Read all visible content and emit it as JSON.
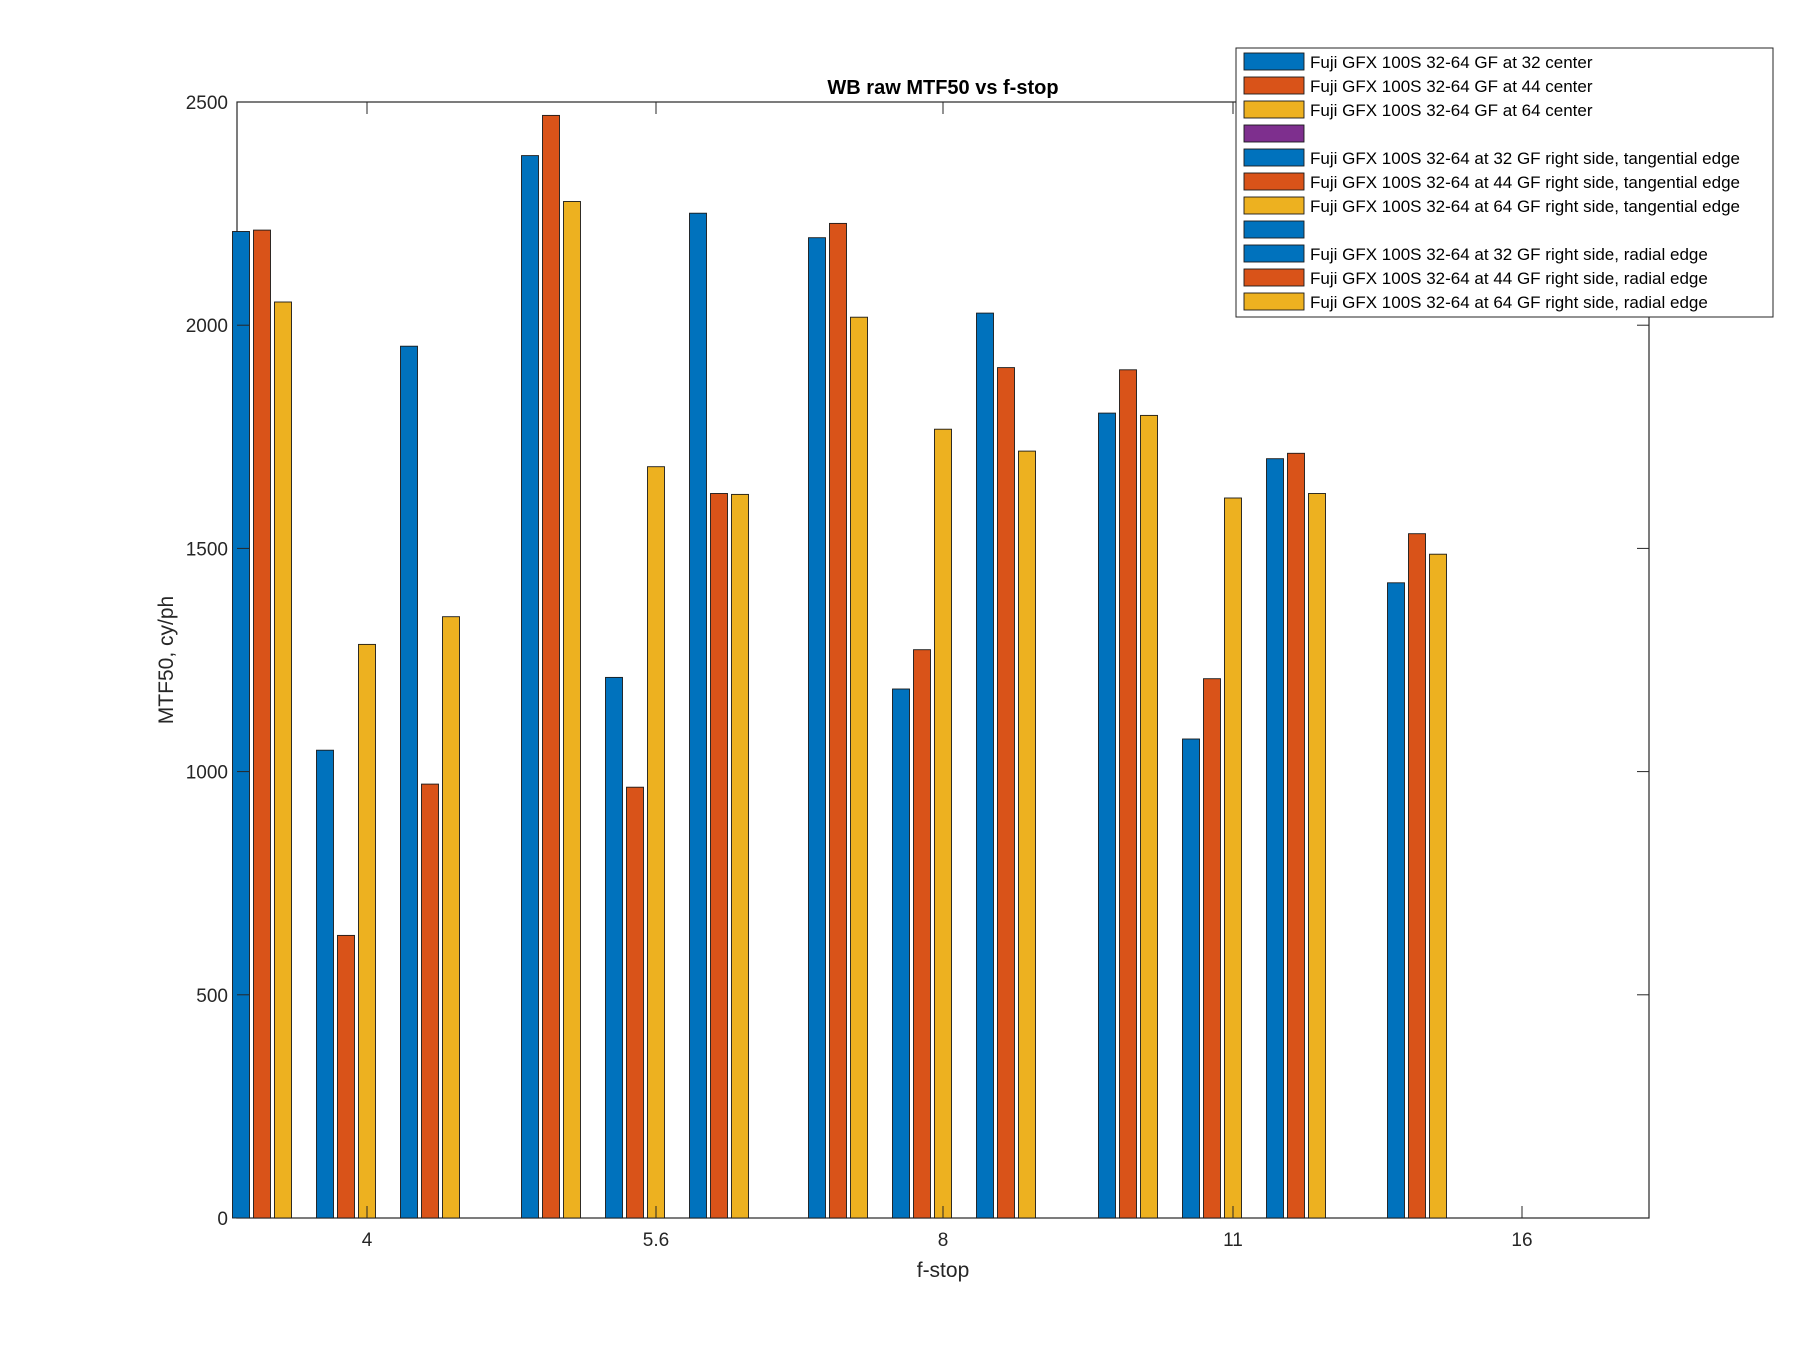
{
  "chart_data": {
    "type": "bar",
    "title": "WB raw MTF50 vs f-stop",
    "xlabel": "f-stop",
    "ylabel": "MTF50, cy/ph",
    "ylim": [
      0,
      2500
    ],
    "yticks": [
      0,
      500,
      1000,
      1500,
      2000,
      2500
    ],
    "xticks": [
      "4",
      "5.6",
      "8",
      "11",
      "16"
    ],
    "grid": false,
    "legend_position": "top-right",
    "groups_per_fstop": 3,
    "series_per_group": 3,
    "series": [
      {
        "name": "Fuji GFX 100S 32-64 GF at 32 center",
        "color": "#0072BD",
        "values": [
          2210,
          2380,
          2196,
          2027,
          1803,
          1701,
          1423
        ]
      },
      {
        "name": "Fuji GFX 100S 32-64 GF at 44 center",
        "color": "#D95319",
        "values": [
          2213,
          2470,
          2228,
          1905,
          1900,
          1713,
          1533
        ]
      },
      {
        "name": "Fuji GFX 100S 32-64 GF at 64 center",
        "color": "#EDB120",
        "values": [
          2052,
          2277,
          2018,
          1718,
          1798,
          1623,
          1487
        ]
      },
      {
        "name": "",
        "color": "#7E2F8E",
        "values": []
      },
      {
        "name": "Fuji GFX 100S 32-64 at 32 GF right side, tangential edge",
        "color": "#0072BD",
        "values": [
          1048,
          1211,
          1185,
          1073
        ]
      },
      {
        "name": "Fuji GFX 100S 32-64 at 44 GF right side, tangential edge",
        "color": "#D95319",
        "values": [
          633,
          965,
          1273,
          1208
        ]
      },
      {
        "name": "Fuji GFX 100S 32-64 at 64 GF right side, tangential edge",
        "color": "#EDB120",
        "values": [
          1285,
          1683,
          1767,
          1613
        ]
      },
      {
        "name": "",
        "color": "#0072BD",
        "values": []
      },
      {
        "name": "Fuji GFX 100S 32-64 at 32 GF right side, radial edge",
        "color": "#0072BD",
        "values": [
          1953,
          2251
        ]
      },
      {
        "name": "Fuji GFX 100S 32-64 at 44 GF right side, radial edge",
        "color": "#D95319",
        "values": [
          972,
          1623
        ]
      },
      {
        "name": "Fuji GFX 100S 32-64 at 64 GF right side, radial edge",
        "color": "#EDB120",
        "values": [
          1347,
          1621
        ]
      }
    ],
    "groups": [
      {
        "fstop": "4",
        "slot": 0,
        "kind": "center",
        "values": [
          2210,
          2213,
          2052
        ]
      },
      {
        "fstop": "4",
        "slot": 1,
        "kind": "tangential",
        "values": [
          1048,
          633,
          1285
        ]
      },
      {
        "fstop": "4",
        "slot": 2,
        "kind": "radial",
        "values": [
          1953,
          972,
          1347
        ]
      },
      {
        "fstop": "5.6",
        "slot": 0,
        "kind": "center",
        "values": [
          2380,
          2470,
          2277
        ]
      },
      {
        "fstop": "5.6",
        "slot": 1,
        "kind": "tangential",
        "values": [
          1211,
          965,
          1683
        ]
      },
      {
        "fstop": "5.6",
        "slot": 2,
        "kind": "radial",
        "values": [
          2251,
          1623,
          1621
        ]
      },
      {
        "fstop": "8",
        "slot": 0,
        "kind": "center",
        "values": [
          2196,
          2228,
          2018
        ]
      },
      {
        "fstop": "8",
        "slot": 1,
        "kind": "tangential",
        "values": [
          1185,
          1273,
          1767
        ]
      },
      {
        "fstop": "8",
        "slot": 2,
        "kind": "center-2",
        "values": [
          2027,
          1905,
          1718
        ]
      },
      {
        "fstop": "11",
        "slot": 0,
        "kind": "center",
        "values": [
          1803,
          1900,
          1798
        ]
      },
      {
        "fstop": "11",
        "slot": 1,
        "kind": "tangential",
        "values": [
          1073,
          1208,
          1613
        ]
      },
      {
        "fstop": "11",
        "slot": 2,
        "kind": "center-2",
        "values": [
          1701,
          1713,
          1623
        ]
      },
      {
        "fstop": "16",
        "slot": 0,
        "kind": "center",
        "values": [
          1423,
          1533,
          1487
        ]
      }
    ]
  }
}
